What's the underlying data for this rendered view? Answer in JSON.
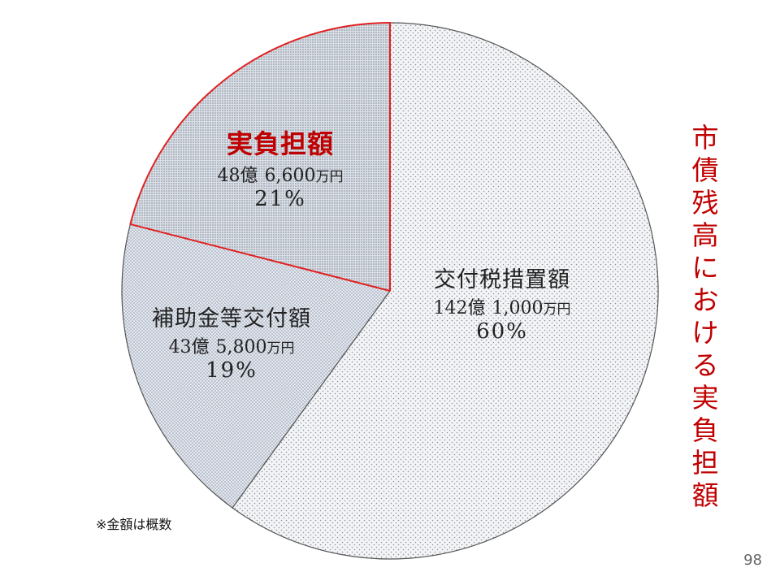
{
  "chart_data": {
    "type": "pie",
    "start_angle_deg": 0,
    "direction": "clockwise",
    "slices": [
      {
        "label": "交付税措置額",
        "amount_oku": "142億",
        "amount_man": "1,000",
        "unit": "万円",
        "percent": "60%",
        "value": 60,
        "fill": "#e7e9ef",
        "dot": "#8c929c",
        "stroke": "#555555"
      },
      {
        "label": "補助金等交付額",
        "amount_oku": "43億",
        "amount_man": "5,800",
        "unit": "万円",
        "percent": "19%",
        "value": 19,
        "fill": "#e1e6ee",
        "dot": "#8a95a8",
        "stroke": "#555555"
      },
      {
        "label": "実負担額",
        "amount_oku": "48億",
        "amount_man": "6,600",
        "unit": "万円",
        "percent": "21%",
        "value": 21,
        "fill": "#cfd6df",
        "dot": "#7d8896",
        "stroke": "#e02020",
        "highlight": true
      }
    ]
  },
  "side_title": "市債残高における実負担額",
  "footnote": "※金額は概数",
  "page_number": "98"
}
